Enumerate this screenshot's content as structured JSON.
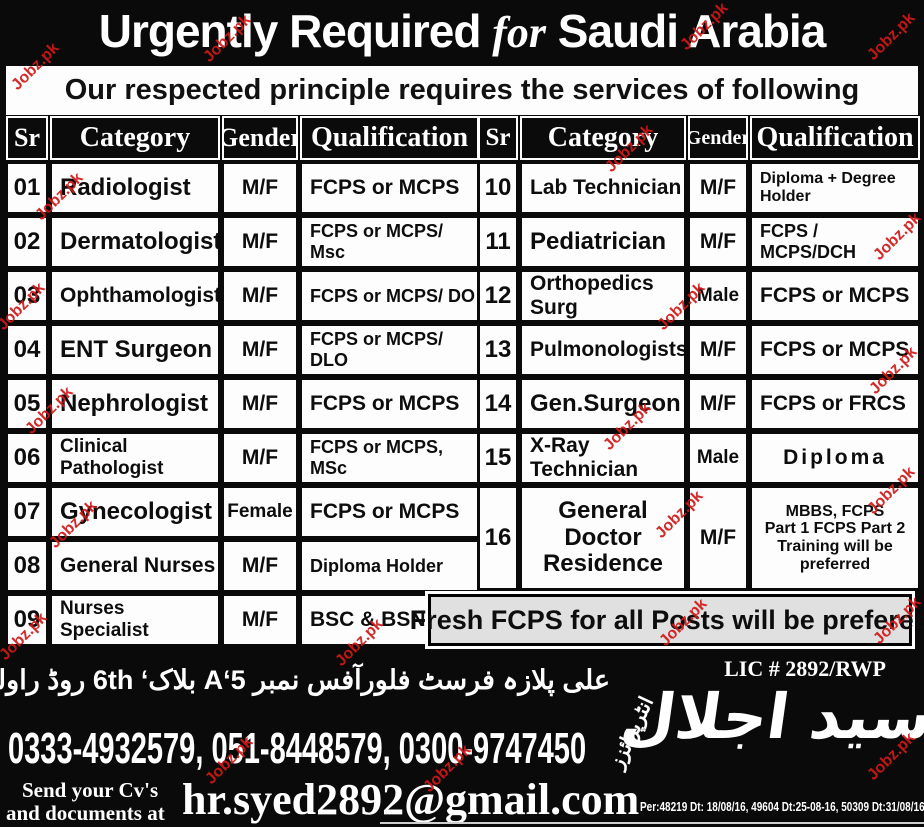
{
  "header": {
    "title_prefix": "Urgently Required ",
    "title_for": "for",
    "title_suffix": " Saudi Arabia"
  },
  "banner": {
    "text": "Our respected principle requires the services of following"
  },
  "table": {
    "columns": [
      "Sr",
      "Category",
      "Gender",
      "Qualification"
    ],
    "left_rows": [
      {
        "sr": "01",
        "category": "Radiologist",
        "gender": "M/F",
        "qualification": "FCPS or MCPS"
      },
      {
        "sr": "02",
        "category": "Dermatologist",
        "gender": "M/F",
        "qualification": "FCPS or MCPS/ Msc"
      },
      {
        "sr": "03",
        "category": "Ophthamologist",
        "gender": "M/F",
        "qualification": "FCPS or MCPS/ DO"
      },
      {
        "sr": "04",
        "category": "ENT Surgeon",
        "gender": "M/F",
        "qualification": "FCPS or MCPS/ DLO"
      },
      {
        "sr": "05",
        "category": "Nephrologist",
        "gender": "M/F",
        "qualification": "FCPS or MCPS"
      },
      {
        "sr": "06",
        "category": "Clinical Pathologist",
        "gender": "M/F",
        "qualification": "FCPS or MCPS, MSc"
      },
      {
        "sr": "07",
        "category": "Gynecologist",
        "gender": "Female",
        "qualification": "FCPS or MCPS"
      },
      {
        "sr": "08",
        "category": "General Nurses",
        "gender": "M/F",
        "qualification": "Diploma Holder"
      },
      {
        "sr": "09",
        "category": "Nurses Specialist",
        "gender": "M/F",
        "qualification": "BSC & BSN"
      }
    ],
    "right_rows": [
      {
        "sr": "10",
        "category": "Lab Technician",
        "gender": "M/F",
        "qualification": "Diploma + Degree Holder"
      },
      {
        "sr": "11",
        "category": "Pediatrician",
        "gender": "M/F",
        "qualification": "FCPS / MCPS/DCH"
      },
      {
        "sr": "12",
        "category": "Orthopedics Surg",
        "gender": "Male",
        "qualification": "FCPS or MCPS"
      },
      {
        "sr": "13",
        "category": "Pulmonologists",
        "gender": "M/F",
        "qualification": "FCPS or MCPS"
      },
      {
        "sr": "14",
        "category": "Gen.Surgeon",
        "gender": "M/F",
        "qualification": "FCPS or FRCS"
      },
      {
        "sr": "15",
        "category": "X-Ray Technician",
        "gender": "Male",
        "qualification": "Diploma"
      },
      {
        "sr": "16",
        "category": "General\nDoctor\nResidence",
        "gender": "M/F",
        "qualification": "MBBS, FCPS\nPart 1 FCPS Part 2\nTraining will be\npreferred"
      }
    ],
    "note": "Fresh FCPS for all Posts will be prefered"
  },
  "footer": {
    "lic": "LIC # 2892/RWP",
    "address_urdu": "علی پلازہ فرسٹ فلورآفس نمبر A‘5 بلاک‘ 6th روڈ راولپنڈی",
    "enterprise_urdu": "انٹرپرائزز",
    "name_urdu": "سید اجلال",
    "phones": "0333-4932579, 051-8448579, 0300-9747450",
    "send_line1": "Send your Cv's",
    "send_line2": "and documents at",
    "email": "hr.syed2892@gmail.com",
    "registry": "Per:48219 Dt: 18/08/16, 49604  Dt:25-08-16, 50309 Dt:31/08/16"
  },
  "watermark": {
    "text": "Jobz.pk",
    "color": "#d01818"
  }
}
